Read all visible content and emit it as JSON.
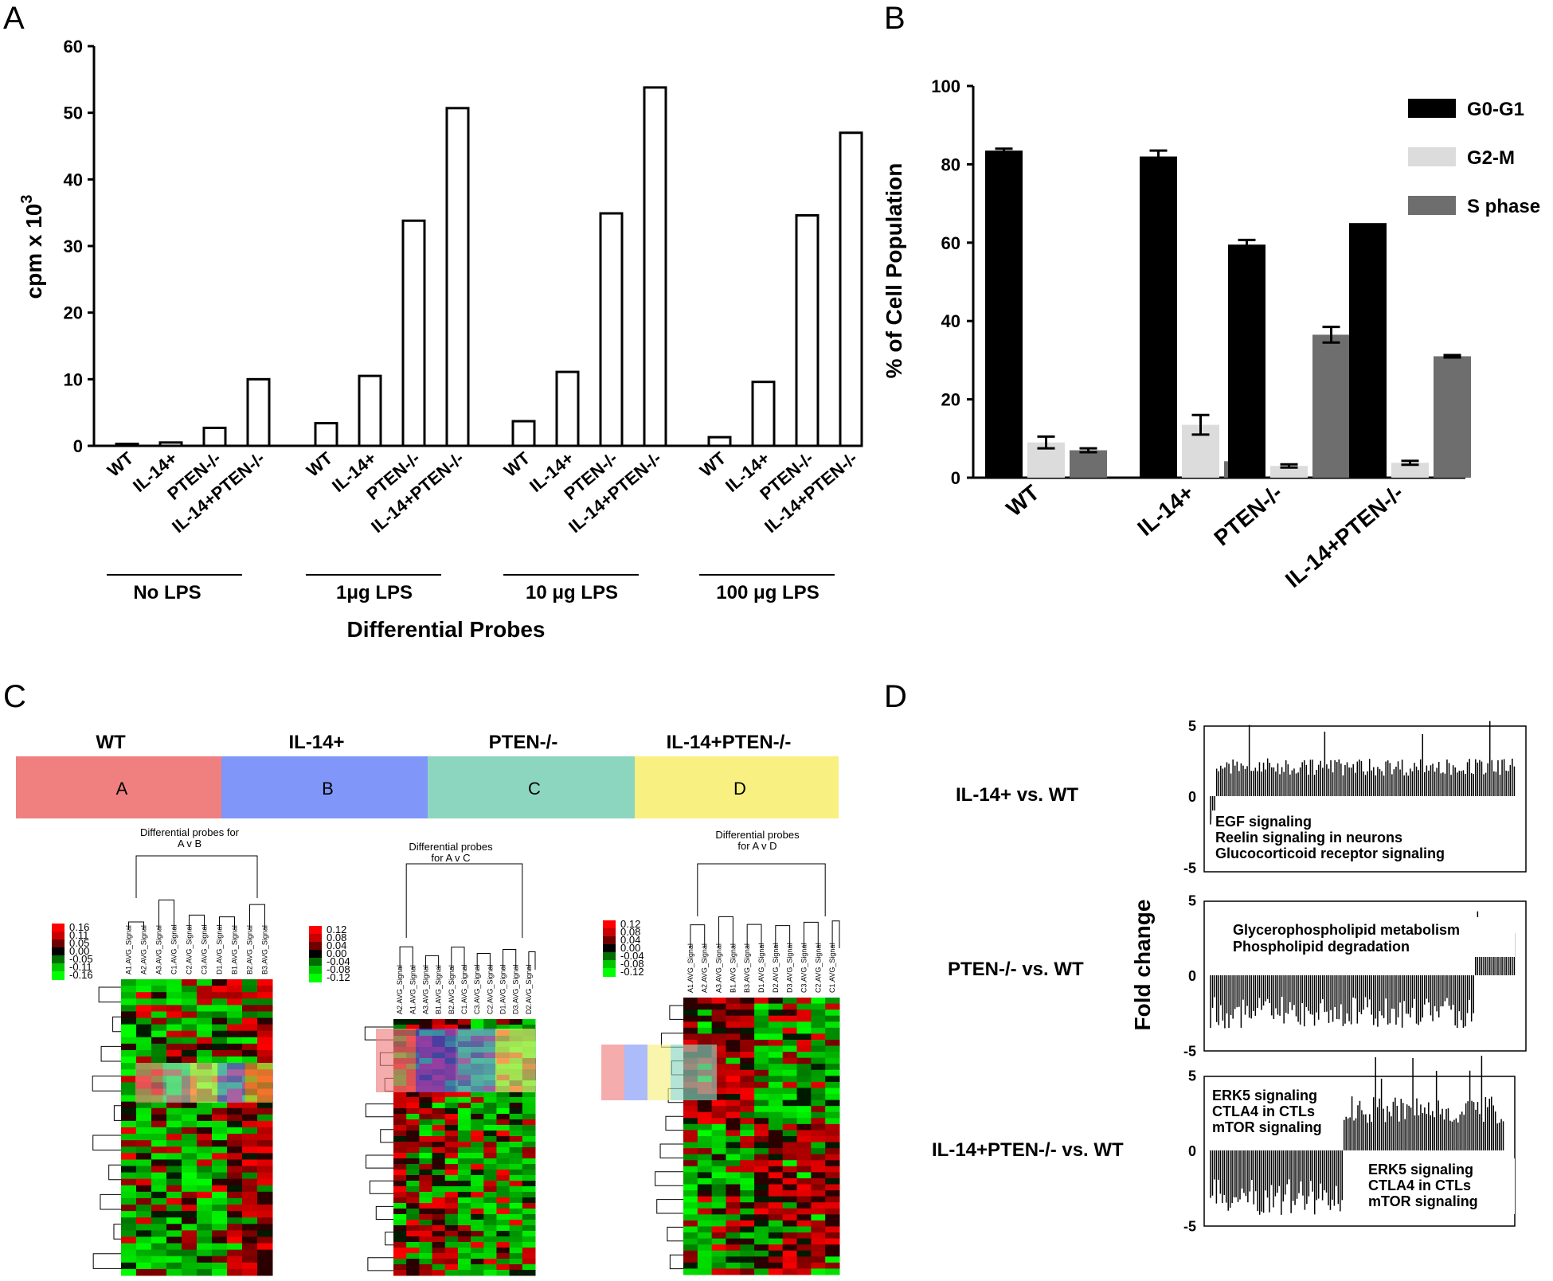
{
  "panels": {
    "a": {
      "letter": "A"
    },
    "b": {
      "letter": "B"
    },
    "c": {
      "letter": "C"
    },
    "d": {
      "letter": "D"
    }
  },
  "chart_data": [
    {
      "id": "A",
      "type": "bar",
      "ylabel": "cpm x 10",
      "ylabel_sup": "3",
      "xlabel": "Differential Probes",
      "ylim": [
        0,
        60
      ],
      "yticks": [
        0,
        10,
        20,
        30,
        40,
        50,
        60
      ],
      "categories": [
        "WT",
        "IL-14+",
        "PTEN-/-",
        "IL-14+PTEN-/-"
      ],
      "groups": [
        {
          "label": "No LPS",
          "values": [
            0.3,
            0.5,
            2.7,
            10
          ]
        },
        {
          "label": "1μg LPS",
          "values": [
            3.4,
            10.5,
            33.8,
            50.7
          ]
        },
        {
          "label": "10 μg LPS",
          "values": [
            3.7,
            11.1,
            34.9,
            53.8
          ]
        },
        {
          "label": "100 μg LPS",
          "values": [
            1.3,
            9.6,
            34.6,
            47.0
          ]
        }
      ]
    },
    {
      "id": "B",
      "type": "bar",
      "ylabel": "% of Cell Population",
      "ylim": [
        0,
        100
      ],
      "yticks": [
        0,
        20,
        40,
        60,
        80,
        100
      ],
      "categories": [
        "WT",
        "IL-14+",
        "PTEN-/-",
        "IL-14+PTEN-/-"
      ],
      "series": [
        {
          "name": "G0-G1",
          "color": "#000000",
          "values": [
            83.5,
            82,
            59.5,
            65
          ],
          "errors": [
            0.5,
            1.5,
            1.2,
            0
          ]
        },
        {
          "name": "G2-M",
          "color": "#dcdcdc",
          "values": [
            9,
            13.5,
            3,
            3.8
          ],
          "errors": [
            1.5,
            2.5,
            0.4,
            0.5
          ]
        },
        {
          "name": "S phase",
          "color": "#6e6e6e",
          "values": [
            7,
            4.2,
            36.5,
            31
          ],
          "errors": [
            0.5,
            0.8,
            2,
            0.3
          ]
        }
      ]
    }
  ],
  "heatmap": {
    "groups": [
      {
        "title": "WT",
        "box": "A",
        "color": "#f08080"
      },
      {
        "title": "IL-14+",
        "box": "B",
        "color": "#8096f8"
      },
      {
        "title": "PTEN-/-",
        "box": "C",
        "color": "#8cd6c0"
      },
      {
        "title": "IL-14+PTEN-/-",
        "box": "D",
        "color": "#f8f080"
      }
    ],
    "maps": [
      {
        "title1": "Differential probes for",
        "title2": "A v B",
        "legend": [
          "0.16",
          "0.11",
          "0.05",
          "0.00",
          "-0.05",
          "-0.11",
          "-0.16"
        ],
        "columns": [
          "A1.AVG_Signal",
          "A2.AVG_Signal",
          "A3.AVG_Signal",
          "C1.AVG_Signal",
          "C2.AVG_Signal",
          "C3.AVG_Signal",
          "D1.AVG_Signal",
          "B1.AVG_Signal",
          "B2.AVG_Signal",
          "B3.AVG_Signal"
        ]
      },
      {
        "title1": "Differential probes",
        "title2": "for A v C",
        "legend": [
          "0.12",
          "0.08",
          "0.04",
          "0.00",
          "-0.04",
          "-0.08",
          "-0.12"
        ],
        "columns": [
          "A2.AVG_Signal",
          "A1.AVG_Signal",
          "A3.AVG_Signal",
          "B1.AVG_Signal",
          "B2.AVG_Signal",
          "C1.AVG_Signal",
          "C3.AVG_Signal",
          "C2.AVG_Signal",
          "D1.AVG_Signal",
          "D3.AVG_Signal",
          "D2.AVG_Signal"
        ]
      },
      {
        "title1": "Differential probes",
        "title2": "for A v D",
        "legend": [
          "0.12",
          "0.08",
          "0.04",
          "0.00",
          "-0.04",
          "-0.08",
          "-0.12"
        ],
        "columns": [
          "A1.AVG_Signal",
          "A2.AVG_Signal",
          "A3.AVG_Signal",
          "B1.AVG_Signal",
          "B3.AVG_Signal",
          "D1.AVG_Signal",
          "D2.AVG_Signal",
          "D3.AVG_Signal",
          "C3.AVG_Signal",
          "C2.AVG_Signal",
          "C1.AVG_Signal"
        ]
      }
    ]
  },
  "fold_change": {
    "ylabel": "Fold change",
    "ticks_labels": [
      "5",
      "0",
      "-5"
    ],
    "comparisons": [
      {
        "label": "IL-14+ vs. WT",
        "notes": [
          "EGF signaling",
          "Reelin  signaling in neurons",
          "Glucocorticoid receptor signaling"
        ]
      },
      {
        "label": "PTEN-/- vs. WT",
        "notes": [
          "Glycerophospholipid metabolism",
          "Phospholipid degradation"
        ]
      },
      {
        "label": "IL-14+PTEN-/- vs. WT",
        "notes_up": [
          "ERK5 signaling",
          "CTLA4 in CTLs",
          "mTOR signaling"
        ],
        "notes_down": [
          "ERK5 signaling",
          "CTLA4 in CTLs",
          "mTOR signaling"
        ]
      }
    ]
  }
}
